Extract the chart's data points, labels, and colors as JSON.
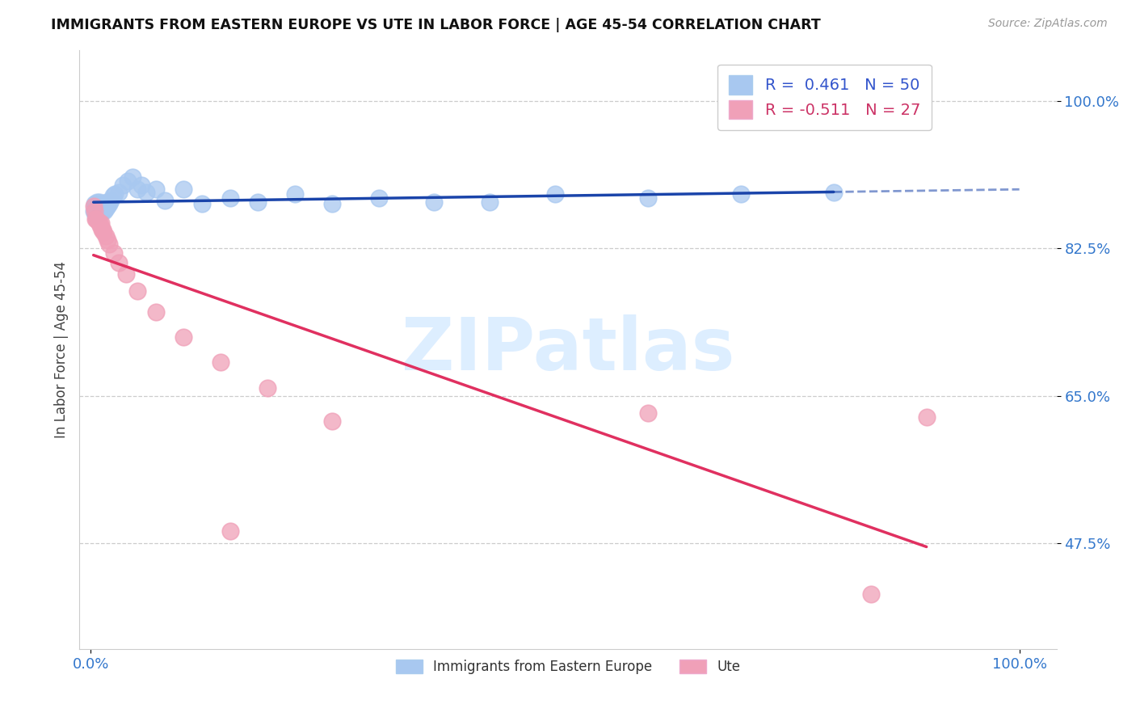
{
  "title": "IMMIGRANTS FROM EASTERN EUROPE VS UTE IN LABOR FORCE | AGE 45-54 CORRELATION CHART",
  "source": "Source: ZipAtlas.com",
  "ylabel": "In Labor Force | Age 45-54",
  "legend_r_blue": "R =  0.461   N = 50",
  "legend_r_pink": "R = -0.511   N = 27",
  "legend_label_blue": "Immigrants from Eastern Europe",
  "legend_label_pink": "Ute",
  "blue_color": "#a8c8f0",
  "pink_color": "#f0a0b8",
  "blue_line_color": "#1a44aa",
  "pink_line_color": "#e03060",
  "watermark": "ZIPatlas",
  "watermark_color": "#ddeeff",
  "blue_x": [
    0.003,
    0.004,
    0.005,
    0.005,
    0.006,
    0.006,
    0.007,
    0.007,
    0.008,
    0.008,
    0.009,
    0.009,
    0.01,
    0.01,
    0.011,
    0.012,
    0.013,
    0.013,
    0.014,
    0.015,
    0.015,
    0.016,
    0.017,
    0.018,
    0.02,
    0.022,
    0.024,
    0.026,
    0.03,
    0.035,
    0.04,
    0.045,
    0.05,
    0.055,
    0.06,
    0.07,
    0.08,
    0.1,
    0.12,
    0.15,
    0.18,
    0.22,
    0.26,
    0.31,
    0.37,
    0.43,
    0.5,
    0.6,
    0.7,
    0.8
  ],
  "blue_y": [
    0.87,
    0.878,
    0.865,
    0.875,
    0.868,
    0.876,
    0.872,
    0.88,
    0.868,
    0.876,
    0.87,
    0.88,
    0.868,
    0.875,
    0.872,
    0.875,
    0.87,
    0.878,
    0.872,
    0.87,
    0.878,
    0.872,
    0.88,
    0.875,
    0.878,
    0.882,
    0.888,
    0.89,
    0.892,
    0.9,
    0.905,
    0.91,
    0.895,
    0.9,
    0.892,
    0.895,
    0.882,
    0.895,
    0.878,
    0.885,
    0.88,
    0.89,
    0.878,
    0.885,
    0.88,
    0.88,
    0.89,
    0.885,
    0.89,
    0.892
  ],
  "pink_x": [
    0.003,
    0.004,
    0.005,
    0.006,
    0.008,
    0.009,
    0.01,
    0.011,
    0.012,
    0.013,
    0.014,
    0.016,
    0.018,
    0.02,
    0.025,
    0.03,
    0.038,
    0.05,
    0.07,
    0.1,
    0.14,
    0.19,
    0.26,
    0.15,
    0.6,
    0.84,
    0.9
  ],
  "pink_y": [
    0.875,
    0.87,
    0.86,
    0.86,
    0.858,
    0.855,
    0.852,
    0.855,
    0.848,
    0.848,
    0.845,
    0.84,
    0.835,
    0.83,
    0.82,
    0.808,
    0.795,
    0.775,
    0.75,
    0.72,
    0.69,
    0.66,
    0.62,
    0.49,
    0.63,
    0.415,
    0.625
  ],
  "ylim": [
    0.35,
    1.06
  ],
  "xlim": [
    -0.012,
    1.04
  ],
  "ytick_vals": [
    0.475,
    0.65,
    0.825,
    1.0
  ],
  "ytick_labels": [
    "47.5%",
    "65.0%",
    "82.5%",
    "100.0%"
  ]
}
